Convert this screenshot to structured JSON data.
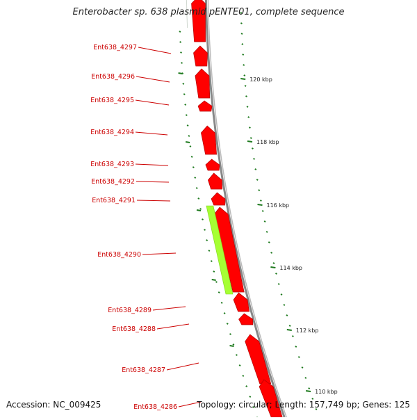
{
  "title": "Enterobacter sp. 638 plasmid pENTE01, complete sequence",
  "accession": "Accession: NC_009425",
  "topology": "Topology: circular; Length: 157,749 bp; Genes: 125",
  "colors": {
    "gene_forward": "#ff0000",
    "gene_outline": "#b40000",
    "highlight_gene": "#a6ff33",
    "label": "#cc0000",
    "tick": "#1e7a1e",
    "backbone": "#888888"
  },
  "tick_labels": [
    "120 kbp",
    "118 kbp",
    "116 kbp",
    "114 kbp",
    "112 kbp",
    "110 kbp"
  ],
  "gene_labels": [
    "Ent638_4297",
    "Ent638_4296",
    "Ent638_4295",
    "Ent638_4294",
    "Ent638_4293",
    "Ent638_4292",
    "Ent638_4291",
    "Ent638_4290",
    "Ent638_4289",
    "Ent638_4288",
    "Ent638_4287",
    "Ent638_4286"
  ]
}
